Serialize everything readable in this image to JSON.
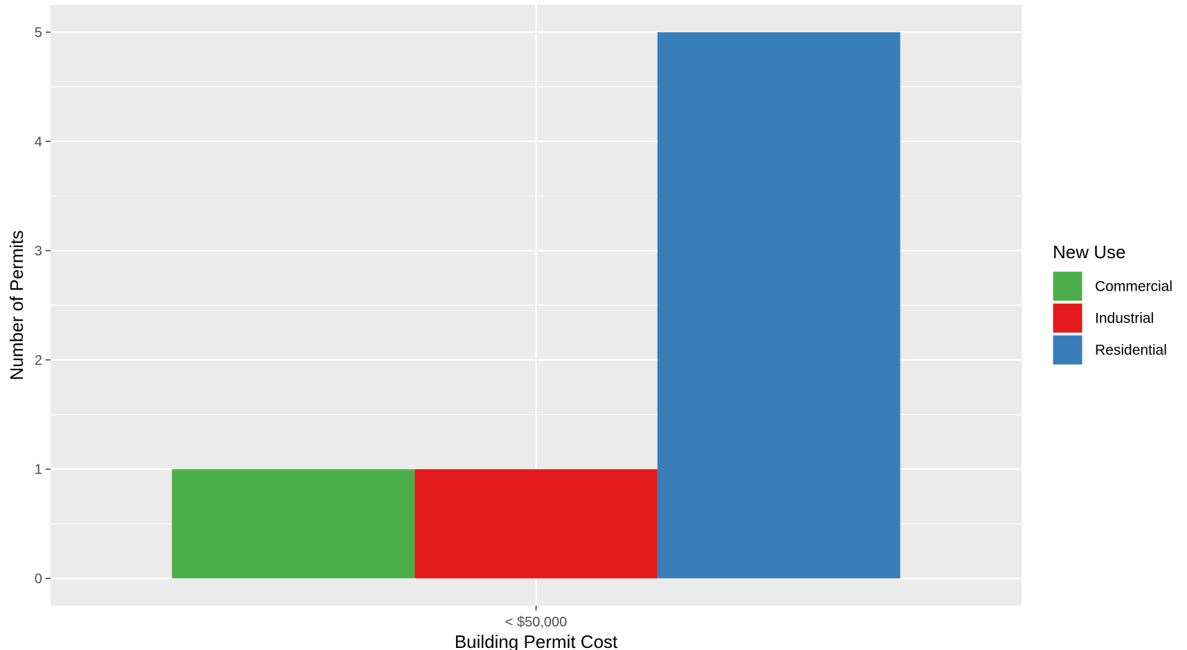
{
  "chart_data": {
    "type": "bar",
    "title": "",
    "xlabel": "Building Permit Cost",
    "ylabel": "Number of Permits",
    "categories": [
      "< $50,000"
    ],
    "series": [
      {
        "name": "Commercial",
        "values": [
          1
        ],
        "color": "#4DAF4A"
      },
      {
        "name": "Industrial",
        "values": [
          1
        ],
        "color": "#E41A1C"
      },
      {
        "name": "Residential",
        "values": [
          5
        ],
        "color": "#377EB8"
      }
    ],
    "ylim": [
      -0.25,
      5.25
    ],
    "yticks": [
      0,
      1,
      2,
      3,
      4,
      5
    ],
    "grid": true,
    "panel_background": "#EBEBEB",
    "legend": {
      "title": "New Use",
      "position": "right"
    }
  }
}
